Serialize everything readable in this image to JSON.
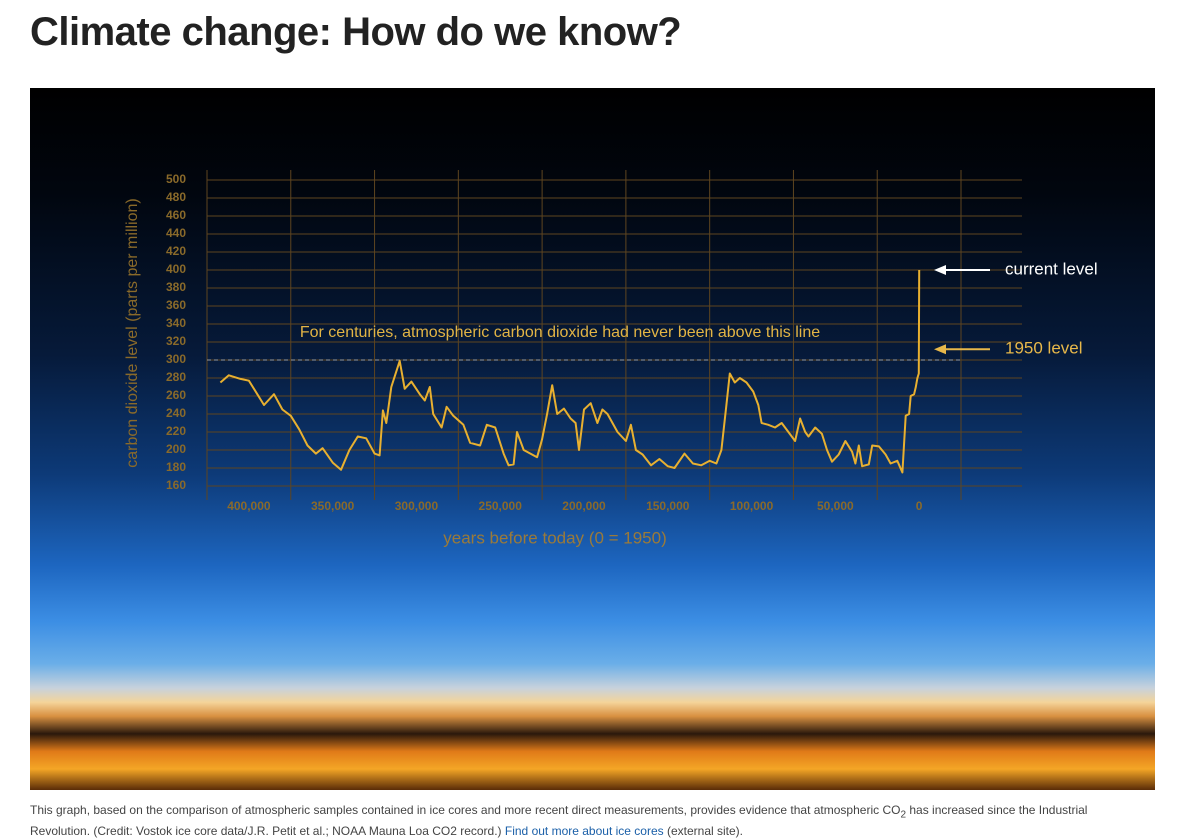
{
  "header": {
    "title": "Climate change: How do we know?"
  },
  "chart_data": {
    "type": "line",
    "xlabel": "years before today (0 = 1950)",
    "ylabel": "carbon dioxide level (parts per million)",
    "xlim": [
      425000,
      -25000
    ],
    "xticks": [
      {
        "value": 400000,
        "label": "400,000"
      },
      {
        "value": 350000,
        "label": "350,000"
      },
      {
        "value": 300000,
        "label": "300,000"
      },
      {
        "value": 250000,
        "label": "250,000"
      },
      {
        "value": 200000,
        "label": "200,000"
      },
      {
        "value": 150000,
        "label": "150,000"
      },
      {
        "value": 100000,
        "label": "100,000"
      },
      {
        "value": 50000,
        "label": "50,000"
      },
      0
    ],
    "ylim": [
      160,
      500
    ],
    "yticks": [
      160,
      180,
      200,
      220,
      240,
      260,
      280,
      300,
      320,
      340,
      360,
      380,
      400,
      420,
      440,
      460,
      480,
      500
    ],
    "grid": true,
    "x": [
      417000,
      412000,
      405000,
      400000,
      395000,
      391000,
      385000,
      380000,
      375000,
      370000,
      365000,
      360000,
      356000,
      350000,
      345000,
      340000,
      335000,
      330000,
      325000,
      322000,
      320000,
      318000,
      315000,
      310000,
      307000,
      303000,
      298000,
      295000,
      292000,
      290000,
      285000,
      282000,
      278000,
      272000,
      268000,
      262000,
      258000,
      253000,
      248000,
      245000,
      242000,
      240000,
      236000,
      232000,
      228000,
      225000,
      222000,
      219000,
      216000,
      212000,
      208000,
      205000,
      203000,
      200000,
      196000,
      192000,
      189000,
      186000,
      183000,
      180000,
      175000,
      172000,
      169000,
      165000,
      160000,
      155000,
      150000,
      146000,
      140000,
      135000,
      130000,
      125000,
      121000,
      118000,
      115000,
      113000,
      110000,
      107000,
      103000,
      99000,
      96000,
      94000,
      90000,
      86000,
      82000,
      78000,
      74000,
      71000,
      68000,
      66000,
      62000,
      58000,
      55000,
      52000,
      48000,
      44000,
      40000,
      38000,
      36000,
      34000,
      30000,
      28000,
      24000,
      20000,
      17000,
      13000,
      10000,
      8000,
      6000,
      5000,
      3000,
      2000,
      1000,
      200,
      -70
    ],
    "series": [
      {
        "name": "CO2",
        "color": "#e8b030",
        "values": [
          275,
          283,
          279,
          277,
          262,
          250,
          262,
          245,
          238,
          223,
          205,
          196,
          202,
          186,
          178,
          200,
          215,
          213,
          196,
          194,
          244,
          230,
          270,
          299,
          268,
          276,
          262,
          255,
          270,
          240,
          225,
          248,
          238,
          228,
          208,
          205,
          228,
          225,
          196,
          183,
          184,
          220,
          200,
          196,
          192,
          212,
          240,
          272,
          240,
          246,
          235,
          230,
          200,
          245,
          252,
          230,
          245,
          240,
          230,
          220,
          210,
          228,
          200,
          195,
          183,
          190,
          182,
          180,
          196,
          185,
          183,
          188,
          185,
          200,
          250,
          285,
          275,
          280,
          275,
          265,
          250,
          230,
          228,
          225,
          230,
          220,
          210,
          235,
          220,
          215,
          225,
          218,
          200,
          187,
          195,
          210,
          198,
          185,
          205,
          182,
          184,
          205,
          204,
          195,
          185,
          188,
          175,
          238,
          240,
          260,
          262,
          270,
          280,
          285,
          400
        ]
      }
    ],
    "reference_line": {
      "label": "For centuries, atmospheric carbon dioxide had never been above this line",
      "value": 300
    },
    "annotations": [
      {
        "label": "current level",
        "value": 400,
        "color": "#ffffff"
      },
      {
        "label": "1950 level",
        "value": 312,
        "color": "#e8b84a"
      }
    ]
  },
  "caption": {
    "text_before": "This graph, based on the comparison of atmospheric samples contained in ice cores and more recent direct measurements, provides evidence that atmospheric CO",
    "subscript": "2",
    "text_after": " has increased since the Industrial Revolution. (Credit: Vostok ice core data/J.R. Petit et al.; NOAA Mauna Loa CO2 record.) ",
    "link": "Find out more about ice cores",
    "text_end": " (external site)."
  }
}
